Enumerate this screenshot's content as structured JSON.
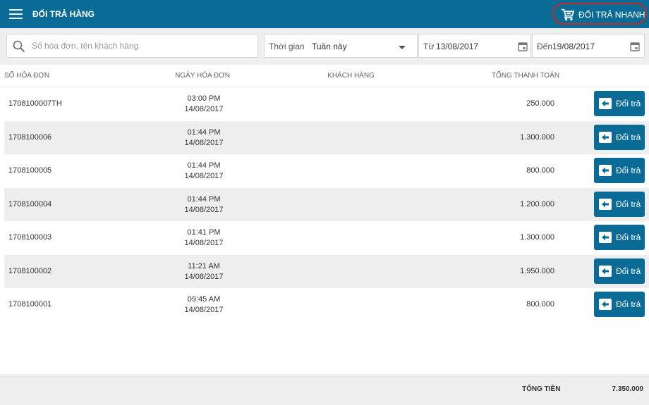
{
  "header": {
    "title": "ĐỔI TRẢ HÀNG",
    "quick_return_label": "ĐỔI TRẢ NHANH",
    "menu_icon": "hamburger-menu-icon",
    "quick_return_icon": "shopping-cart-icon"
  },
  "filters": {
    "search_placeholder": "Số hóa đơn, tên khách hàng",
    "search_value": "",
    "time_label": "Thời gian",
    "time_value": "Tuần này",
    "from_label": "Từ",
    "from_value": "13/08/2017",
    "to_label": "Đến",
    "to_value": "19/08/2017"
  },
  "table": {
    "columns": [
      "SỐ HÓA ĐƠN",
      "NGÀY HÓA ĐƠN",
      "KHÁCH HÀNG",
      "TỔNG THANH TOÁN"
    ],
    "action_label": "Đổi trả",
    "rows": [
      {
        "invoice": "1708100007TH",
        "time": "03:00 PM",
        "date": "14/08/2017",
        "customer": "",
        "total": "250.000"
      },
      {
        "invoice": "1708100006",
        "time": "01:44 PM",
        "date": "14/08/2017",
        "customer": "",
        "total": "1.300.000"
      },
      {
        "invoice": "1708100005",
        "time": "01:44 PM",
        "date": "14/08/2017",
        "customer": "",
        "total": "800.000"
      },
      {
        "invoice": "1708100004",
        "time": "01:44 PM",
        "date": "14/08/2017",
        "customer": "",
        "total": "1.200.000"
      },
      {
        "invoice": "1708100003",
        "time": "01:41 PM",
        "date": "14/08/2017",
        "customer": "",
        "total": "1.300.000"
      },
      {
        "invoice": "1708100002",
        "time": "11:21 AM",
        "date": "14/08/2017",
        "customer": "",
        "total": "1.950.000"
      },
      {
        "invoice": "1708100001",
        "time": "09:45 AM",
        "date": "14/08/2017",
        "customer": "",
        "total": "800.000"
      }
    ]
  },
  "footer": {
    "total_label": "TỔNG TIỀN",
    "total_value": "7.350.000"
  },
  "colors": {
    "primary": "#0a6b96",
    "highlight_ring": "#c62828",
    "row_alt": "#eeeeee"
  }
}
